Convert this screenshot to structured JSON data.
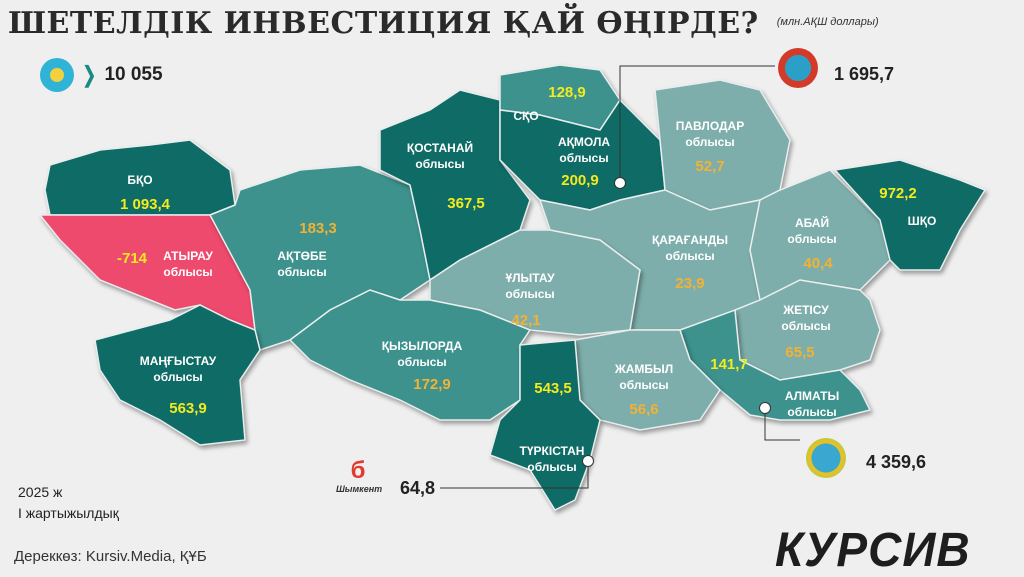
{
  "header": {
    "title": "ШЕТЕЛДІК ИНВЕСТИЦИЯ ҚАЙ ӨҢІРДЕ?",
    "unit": "(млн.АҚШ доллары)"
  },
  "total": {
    "icon": "kazakhstan-emblem-icon",
    "value": "10 055"
  },
  "colors": {
    "dark": "#0f6b66",
    "mid": "#3d928e",
    "light": "#7eaeab",
    "negative": "#ee4a6d",
    "value_dark": "#f3ec1c",
    "value_light": "#f2b233"
  },
  "regions": [
    {
      "id": "bko",
      "name": "БҚО",
      "sub": "",
      "value": "1 093,4"
    },
    {
      "id": "atyrau",
      "name": "АТЫРАУ",
      "sub": "облысы",
      "value": "-714"
    },
    {
      "id": "aktobe",
      "name": "АҚТӨБЕ",
      "sub": "облысы",
      "value": "183,3"
    },
    {
      "id": "mangystau",
      "name": "МАҢҒЫСТАУ",
      "sub": "облысы",
      "value": "563,9"
    },
    {
      "id": "kostanai",
      "name": "ҚОСТАНАЙ",
      "sub": "облысы",
      "value": "367,5"
    },
    {
      "id": "sko",
      "name": "СҚО",
      "sub": "",
      "value": "128,9"
    },
    {
      "id": "akmola",
      "name": "АҚМОЛА",
      "sub": "облысы",
      "value": "200,9"
    },
    {
      "id": "pavlodar",
      "name": "ПАВЛОДАР",
      "sub": "облысы",
      "value": "52,7"
    },
    {
      "id": "karaganda",
      "name": "ҚАРАҒАНДЫ",
      "sub": "облысы",
      "value": "23,9"
    },
    {
      "id": "ulytau",
      "name": "ҰЛЫТАУ",
      "sub": "облысы",
      "value": "42,1"
    },
    {
      "id": "abai",
      "name": "АБАЙ",
      "sub": "облысы",
      "value": "40,4"
    },
    {
      "id": "vko",
      "name": "ШҚО",
      "sub": "",
      "value": "972,2"
    },
    {
      "id": "zhetisu",
      "name": "ЖЕТІСУ",
      "sub": "облысы",
      "value": "65,5"
    },
    {
      "id": "almaty",
      "name": "АЛМАТЫ",
      "sub": "облысы",
      "value": "141,7"
    },
    {
      "id": "zhambyl",
      "name": "ЖАМБЫЛ",
      "sub": "облысы",
      "value": "56,6"
    },
    {
      "id": "turkistan",
      "name": "ТҮРКІСТАН",
      "sub": "облысы",
      "value": "543,5"
    },
    {
      "id": "kyzylorda",
      "name": "ҚЫЗЫЛОРДА",
      "sub": "облысы",
      "value": "172,9"
    }
  ],
  "cities": {
    "astana": {
      "icon": "astana-emblem-icon",
      "value": "1 695,7"
    },
    "almaty": {
      "icon": "almaty-emblem-icon",
      "value": "4 359,6"
    },
    "shymkent": {
      "icon": "shymkent-logo-icon",
      "logo_text": "Шымкент",
      "value": "64,8"
    }
  },
  "footer": {
    "period_year": "2025 ж",
    "period_half": "І жартыжылдық",
    "source": "Дереккөз: Kursiv.Media, ҚҰБ",
    "brand": "КУРСИВ"
  }
}
